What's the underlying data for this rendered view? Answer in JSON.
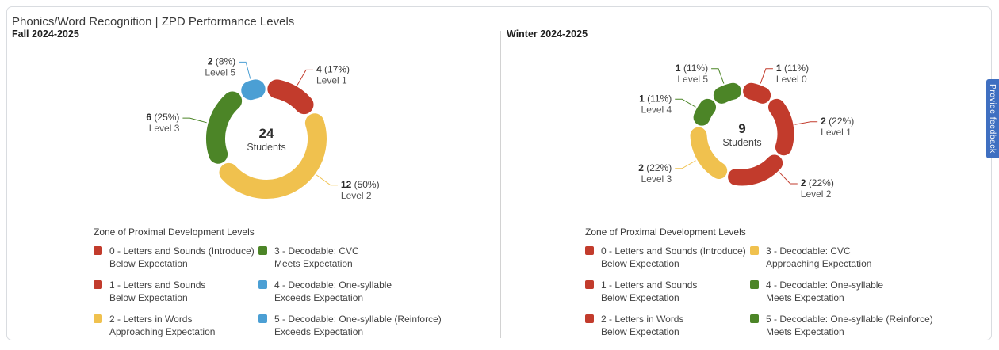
{
  "page": {
    "title": "Phonics/Word Recognition | ZPD Performance Levels",
    "feedback_tab": "Provide feedback"
  },
  "colors": {
    "red": "#c23b2c",
    "yellow": "#f0c14e",
    "green": "#4c8527",
    "blue": "#4b9fd4",
    "feedback_blue": "#3f6fc1"
  },
  "chart_data": [
    {
      "type": "donut",
      "title": "Fall 2024-2025",
      "center": {
        "value": "24",
        "label": "Students"
      },
      "total": 24,
      "slices": [
        {
          "level": "Level 1",
          "value": 4,
          "pct": "17%",
          "color": "#c23b2c"
        },
        {
          "level": "Level 2",
          "value": 12,
          "pct": "50%",
          "color": "#f0c14e",
          "label_angle_hint": 126
        },
        {
          "level": "Level 3",
          "value": 6,
          "pct": "25%",
          "color": "#4c8527"
        },
        {
          "level": "Level 5",
          "value": 2,
          "pct": "8%",
          "color": "#4b9fd4"
        }
      ],
      "legend": {
        "title": "Zone of Proximal Development Levels",
        "items": [
          {
            "color": "#c23b2c",
            "line1": "0 - Letters and Sounds (Introduce)",
            "line2": "Below Expectation"
          },
          {
            "color": "#c23b2c",
            "line1": "1 - Letters and Sounds",
            "line2": "Below Expectation"
          },
          {
            "color": "#f0c14e",
            "line1": "2 - Letters in Words",
            "line2": "Approaching Expectation"
          },
          {
            "color": "#4c8527",
            "line1": "3 - Decodable: CVC",
            "line2": "Meets Expectation"
          },
          {
            "color": "#4b9fd4",
            "line1": "4 - Decodable: One-syllable",
            "line2": "Exceeds Expectation"
          },
          {
            "color": "#4b9fd4",
            "line1": "5 - Decodable: One-syllable (Reinforce)",
            "line2": "Exceeds Expectation"
          }
        ]
      }
    },
    {
      "type": "donut",
      "title": "Winter 2024-2025",
      "center": {
        "value": "9",
        "label": "Students"
      },
      "total": 9,
      "slices": [
        {
          "level": "Level 0",
          "value": 1,
          "pct": "11%",
          "color": "#c23b2c"
        },
        {
          "level": "Level 1",
          "value": 2,
          "pct": "22%",
          "color": "#c23b2c"
        },
        {
          "level": "Level 2",
          "value": 2,
          "pct": "22%",
          "color": "#c23b2c",
          "label_angle_hint": 136
        },
        {
          "level": "Level 3",
          "value": 2,
          "pct": "22%",
          "color": "#f0c14e"
        },
        {
          "level": "Level 4",
          "value": 1,
          "pct": "11%",
          "color": "#4c8527"
        },
        {
          "level": "Level 5",
          "value": 1,
          "pct": "11%",
          "color": "#4c8527"
        }
      ],
      "legend": {
        "title": "Zone of Proximal Development Levels",
        "items": [
          {
            "color": "#c23b2c",
            "line1": "0 - Letters and Sounds (Introduce)",
            "line2": "Below Expectation"
          },
          {
            "color": "#c23b2c",
            "line1": "1 - Letters and Sounds",
            "line2": "Below Expectation"
          },
          {
            "color": "#c23b2c",
            "line1": "2 - Letters in Words",
            "line2": "Below Expectation"
          },
          {
            "color": "#f0c14e",
            "line1": "3 - Decodable: CVC",
            "line2": "Approaching Expectation"
          },
          {
            "color": "#4c8527",
            "line1": "4 - Decodable: One-syllable",
            "line2": "Meets Expectation"
          },
          {
            "color": "#4c8527",
            "line1": "5 - Decodable: One-syllable (Reinforce)",
            "line2": "Meets Expectation"
          }
        ]
      }
    }
  ]
}
